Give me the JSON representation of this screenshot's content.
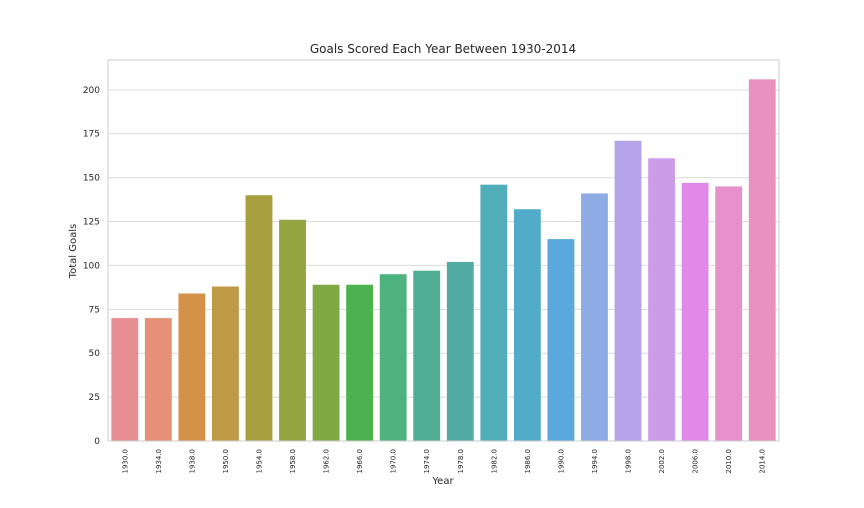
{
  "chart_data": {
    "type": "bar",
    "title": "Goals Scored Each Year Between 1930-2014",
    "xlabel": "Year",
    "ylabel": "Total Goals",
    "ylim": [
      0,
      217
    ],
    "yticks": [
      0,
      25,
      50,
      75,
      100,
      125,
      150,
      175,
      200
    ],
    "grid": "horizontal",
    "categories": [
      "1930.0",
      "1934.0",
      "1938.0",
      "1950.0",
      "1954.0",
      "1958.0",
      "1962.0",
      "1966.0",
      "1970.0",
      "1974.0",
      "1978.0",
      "1982.0",
      "1986.0",
      "1990.0",
      "1994.0",
      "1998.0",
      "2002.0",
      "2006.0",
      "2010.0",
      "2014.0"
    ],
    "values": [
      70,
      70,
      84,
      88,
      140,
      126,
      89,
      89,
      95,
      97,
      102,
      146,
      132,
      115,
      141,
      171,
      161,
      147,
      145,
      206
    ],
    "colors": [
      "#e88e92",
      "#e69078",
      "#d4914a",
      "#be9a47",
      "#a79f3f",
      "#93a440",
      "#7ea943",
      "#4bb24d",
      "#4db27d",
      "#4fae92",
      "#51aba3",
      "#51aeb8",
      "#52abc9",
      "#5aa8dd",
      "#8eabe6",
      "#b3a4ea",
      "#cc9ce9",
      "#e189e6",
      "#e791cc",
      "#e991bd"
    ]
  }
}
